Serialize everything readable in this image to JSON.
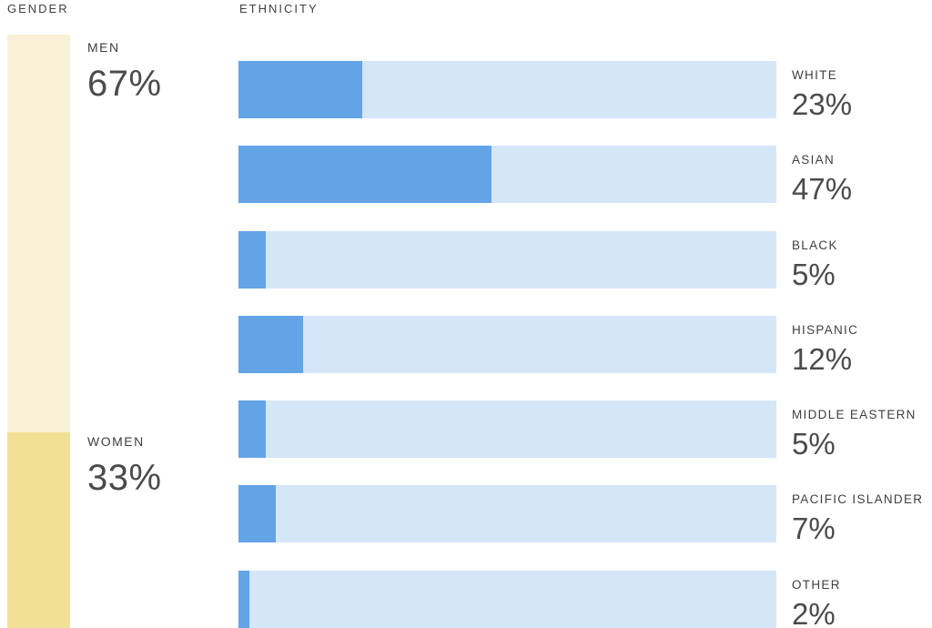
{
  "page": {
    "background": "#ffffff"
  },
  "colors": {
    "men_segment": "#F9F1D6",
    "women_segment": "#F2E096",
    "bar_fill": "#63A4E7",
    "bar_track": "#D5E6F9",
    "label_text": "#3c3f42",
    "value_text": "#4b4b4b"
  },
  "gender": {
    "section_label": "GENDER",
    "segments": [
      {
        "label": "MEN",
        "value": 67,
        "value_label": "67%",
        "color": "#F9F1D6"
      },
      {
        "label": "WOMEN",
        "value": 33,
        "value_label": "33%",
        "color": "#F2E096"
      }
    ]
  },
  "ethnicity": {
    "section_label": "ETHNICITY",
    "bar_fill_color": "#63A4E7",
    "bar_track_color": "#D5E6F9",
    "rows": [
      {
        "label": "WHITE",
        "value": 23,
        "value_label": "23%"
      },
      {
        "label": "ASIAN",
        "value": 47,
        "value_label": "47%"
      },
      {
        "label": "BLACK",
        "value": 5,
        "value_label": "5%"
      },
      {
        "label": "HISPANIC",
        "value": 12,
        "value_label": "12%"
      },
      {
        "label": "MIDDLE EASTERN",
        "value": 5,
        "value_label": "5%"
      },
      {
        "label": "PACIFIC ISLANDER",
        "value": 7,
        "value_label": "7%"
      },
      {
        "label": "OTHER",
        "value": 2,
        "value_label": "2%"
      }
    ]
  },
  "chart_data": [
    {
      "type": "bar",
      "title": "GENDER",
      "orientation": "vertical-stacked",
      "categories": [
        "MEN",
        "WOMEN"
      ],
      "values": [
        67,
        33
      ],
      "unit": "%",
      "colors": [
        "#F9F1D6",
        "#F2E096"
      ],
      "xlabel": "",
      "ylabel": "",
      "grid": false,
      "legend_position": "none"
    },
    {
      "type": "bar",
      "title": "ETHNICITY",
      "orientation": "horizontal",
      "categories": [
        "WHITE",
        "ASIAN",
        "BLACK",
        "HISPANIC",
        "MIDDLE EASTERN",
        "PACIFIC ISLANDER",
        "OTHER"
      ],
      "values": [
        23,
        47,
        5,
        12,
        5,
        7,
        2
      ],
      "unit": "%",
      "xlim": [
        0,
        100
      ],
      "bar_color": "#63A4E7",
      "track_color": "#D5E6F9",
      "xlabel": "",
      "ylabel": "",
      "grid": false,
      "legend_position": "none"
    }
  ]
}
